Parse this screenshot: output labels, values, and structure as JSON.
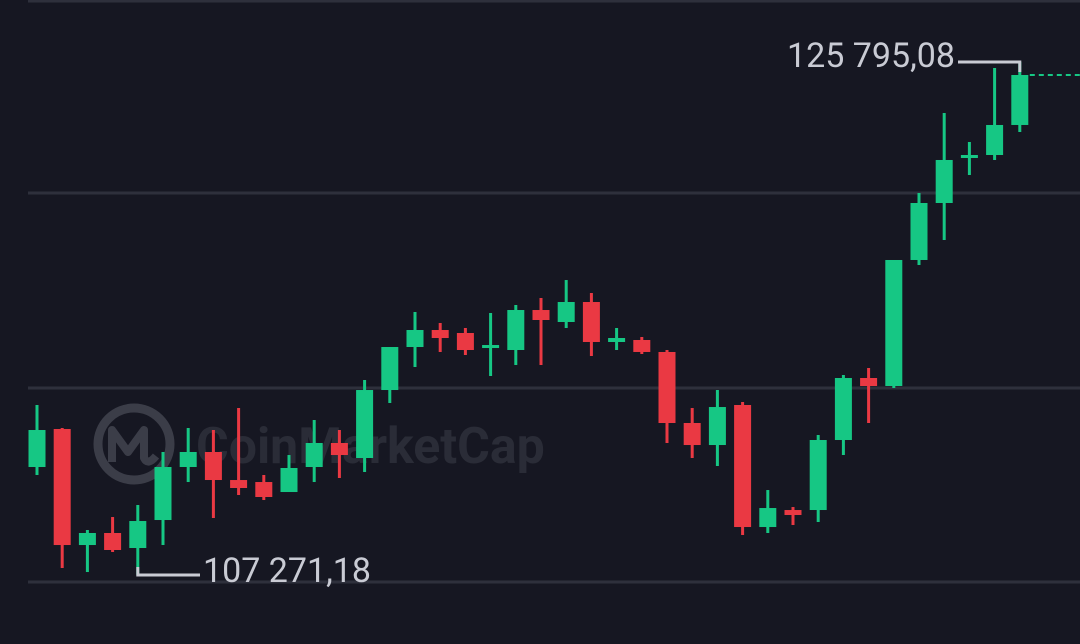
{
  "chart_data": {
    "type": "candlestick",
    "watermark": "CoinMarketCap",
    "up_color": "#16c784",
    "down_color": "#ea3943",
    "ylim": [
      104780,
      128034
    ],
    "open": [
      111171,
      112543,
      108354,
      108788,
      108246,
      109257,
      111171,
      111713,
      110701,
      110629,
      110268,
      111171,
      112038,
      111496,
      113951,
      115504,
      116118,
      116010,
      115468,
      115396,
      116840,
      116407,
      117129,
      115685,
      115757,
      115324,
      112760,
      111965,
      113410,
      109004,
      109618,
      109618,
      112146,
      114385,
      114096,
      118646,
      120704,
      122329,
      122437,
      123521
    ],
    "high": [
      113410,
      112579,
      108896,
      109365,
      109799,
      111713,
      112579,
      112507,
      113301,
      110882,
      111604,
      112868,
      112507,
      114312,
      115504,
      116768,
      116371,
      116190,
      116732,
      117021,
      117273,
      117923,
      117454,
      116190,
      115865,
      115396,
      113301,
      113951,
      113518,
      110340,
      109726,
      112326,
      114493,
      114746,
      118646,
      121065,
      123954,
      122907,
      125579,
      125795.08
    ],
    "low": [
      110882,
      107524,
      107379,
      108102,
      107271.18,
      108354,
      110629,
      109329,
      110160,
      109979,
      110268,
      110629,
      110774,
      110990,
      113482,
      114782,
      115324,
      115215,
      114457,
      114854,
      114854,
      116190,
      115179,
      115396,
      115251,
      112038,
      111496,
      111207,
      108715,
      108788,
      109077,
      109185,
      111604,
      112760,
      114024,
      118465,
      119368,
      121715,
      122257,
      123268
    ],
    "close": [
      112507,
      108354,
      108788,
      108174,
      109221,
      111171,
      111713,
      110701,
      110413,
      110088,
      111135,
      112038,
      111604,
      113951,
      115504,
      116118,
      115829,
      115396,
      115576,
      116840,
      116479,
      117129,
      115685,
      115829,
      115324,
      112760,
      111965,
      113337,
      109004,
      109690,
      109438,
      112146,
      114385,
      114096,
      118646,
      120704,
      122257,
      122437,
      123521,
      125326
    ],
    "annotations": [
      {
        "label": "125 795,08",
        "value": 125795.08
      },
      {
        "label": "107 271,18",
        "value": 107271.18
      }
    ]
  }
}
